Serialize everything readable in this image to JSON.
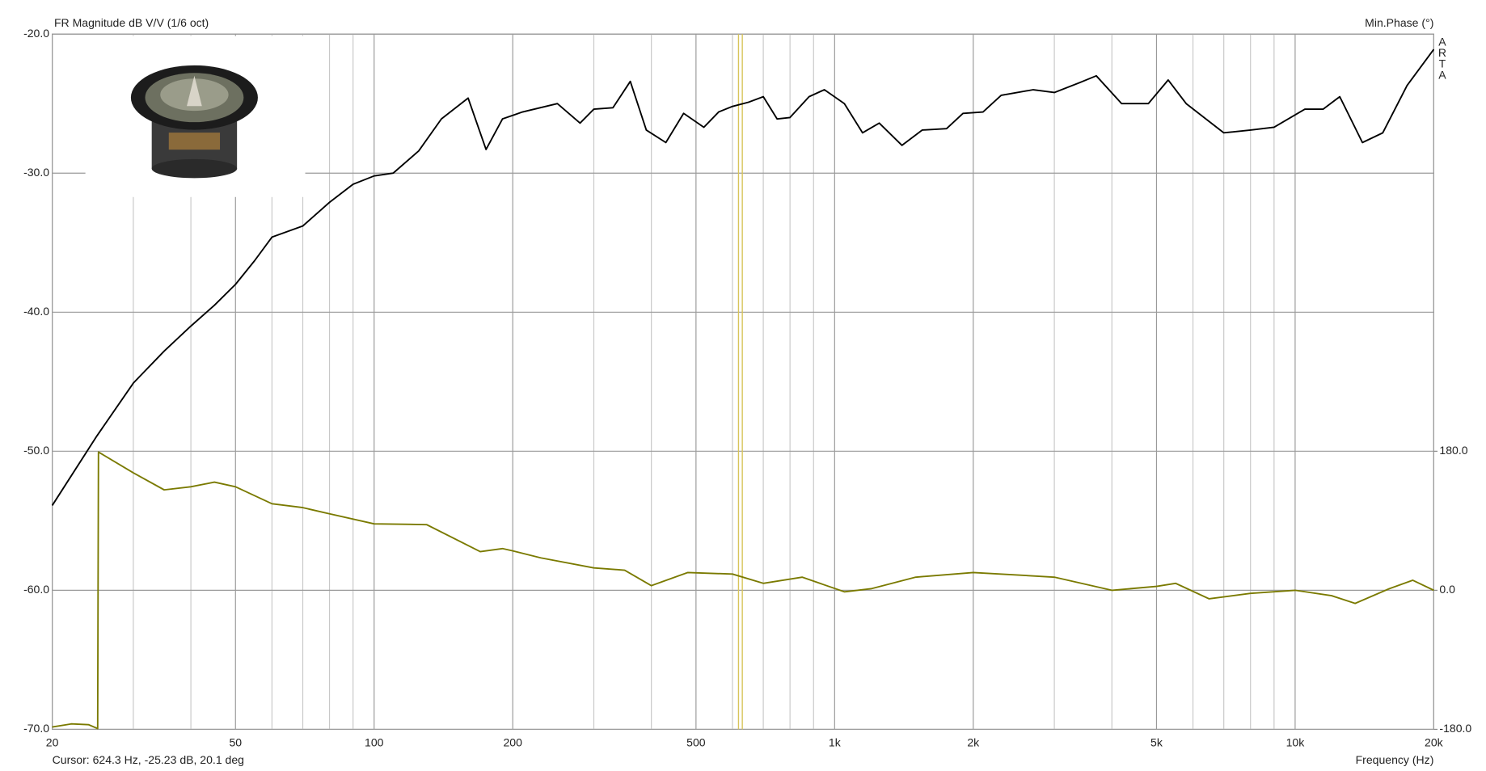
{
  "chart_data": {
    "type": "line",
    "title": "FR Magnitude dB V/V (1/6 oct)",
    "y2_label": "Min.Phase (°)",
    "x_label": "Frequency (Hz)",
    "watermark": "ARTA",
    "x_log": true,
    "grid": true,
    "xlim": [
      20,
      20000
    ],
    "xticks": [
      20,
      50,
      100,
      200,
      500,
      {
        "value": 1000,
        "label": "1k"
      },
      {
        "value": 2000,
        "label": "2k"
      },
      {
        "value": 5000,
        "label": "5k"
      },
      {
        "value": 10000,
        "label": "10k"
      },
      {
        "value": 20000,
        "label": "20k"
      }
    ],
    "xgrid_minor": [
      30,
      40,
      60,
      70,
      80,
      90,
      300,
      400,
      600,
      700,
      800,
      900,
      3000,
      4000,
      6000,
      7000,
      8000,
      9000
    ],
    "ylim": [
      -70,
      -20
    ],
    "yticks": [
      {
        "value": -70,
        "label": "-70.0"
      },
      {
        "value": -60,
        "label": "-60.0"
      },
      {
        "value": -50,
        "label": "-50.0"
      },
      {
        "value": -40,
        "label": "-40.0"
      },
      {
        "value": -30,
        "label": "-30.0"
      },
      {
        "value": -20,
        "label": "-20.0"
      }
    ],
    "y2lim": [
      -180,
      720
    ],
    "y2ticks": [
      {
        "value": -180,
        "label": "-180.0"
      },
      {
        "value": 0,
        "label": "0.0"
      },
      {
        "value": 180,
        "label": "180.0"
      }
    ],
    "cursor": {
      "label": "Cursor: 624.3 Hz, -25.23 dB, 20.1 deg",
      "x": 624.3,
      "color": "#d8c45a"
    },
    "series": [
      {
        "name": "FR Magnitude",
        "color": "#000000",
        "x": [
          20,
          25,
          30,
          35,
          40,
          45,
          50,
          55,
          60,
          70,
          80,
          90,
          100,
          110,
          125,
          140,
          160,
          175,
          190,
          210,
          250,
          280,
          300,
          330,
          360,
          390,
          430,
          470,
          520,
          560,
          600,
          650,
          700,
          750,
          800,
          880,
          950,
          1050,
          1150,
          1250,
          1400,
          1550,
          1750,
          1900,
          2100,
          2300,
          2700,
          3000,
          3400,
          3700,
          4200,
          4800,
          5300,
          5800,
          7000,
          8000,
          9000,
          10500,
          11500,
          12500,
          14000,
          15500,
          17500,
          20000
        ],
        "values": [
          -53.9,
          -48.9,
          -45.1,
          -42.8,
          -41.0,
          -39.5,
          -38.0,
          -36.3,
          -34.6,
          -33.8,
          -32.1,
          -30.8,
          -30.2,
          -30.0,
          -28.4,
          -26.1,
          -24.6,
          -28.3,
          -26.1,
          -25.6,
          -25.0,
          -26.4,
          -25.4,
          -25.3,
          -23.4,
          -26.9,
          -27.8,
          -25.7,
          -26.7,
          -25.6,
          -25.2,
          -24.9,
          -24.5,
          -26.1,
          -26.0,
          -24.5,
          -24.0,
          -25.0,
          -27.1,
          -26.4,
          -28.0,
          -26.9,
          -26.8,
          -25.7,
          -25.6,
          -24.4,
          -24.0,
          -24.2,
          -23.5,
          -23.0,
          -25.0,
          -25.0,
          -23.3,
          -25.0,
          -27.1,
          -26.9,
          -26.7,
          -25.4,
          -25.4,
          -24.5,
          -27.8,
          -27.1,
          -23.7,
          -21.1
        ]
      },
      {
        "name": "Min.Phase",
        "color": "#7a7a00",
        "axis": "y2",
        "x": [
          20,
          22,
          24,
          25.1,
          25.2,
          30,
          35,
          40,
          45,
          50,
          60,
          70,
          80,
          100,
          130,
          170,
          190,
          200,
          230,
          300,
          350,
          400,
          480,
          600,
          700,
          850,
          1050,
          1200,
          1500,
          2000,
          3000,
          4000,
          5000,
          5500,
          6500,
          8000,
          10000,
          12000,
          13500,
          16000,
          18000,
          20000
        ],
        "values": [
          -177,
          -173,
          -174,
          -179,
          179,
          152,
          130,
          134,
          140,
          134,
          112,
          107,
          99,
          86,
          85,
          50,
          54,
          51,
          42,
          29,
          26,
          6,
          23,
          21,
          9,
          17,
          -2,
          2,
          17,
          23,
          17,
          0,
          5,
          9,
          -11,
          -4,
          0,
          -7,
          -17,
          2,
          13,
          0
        ]
      }
    ]
  }
}
